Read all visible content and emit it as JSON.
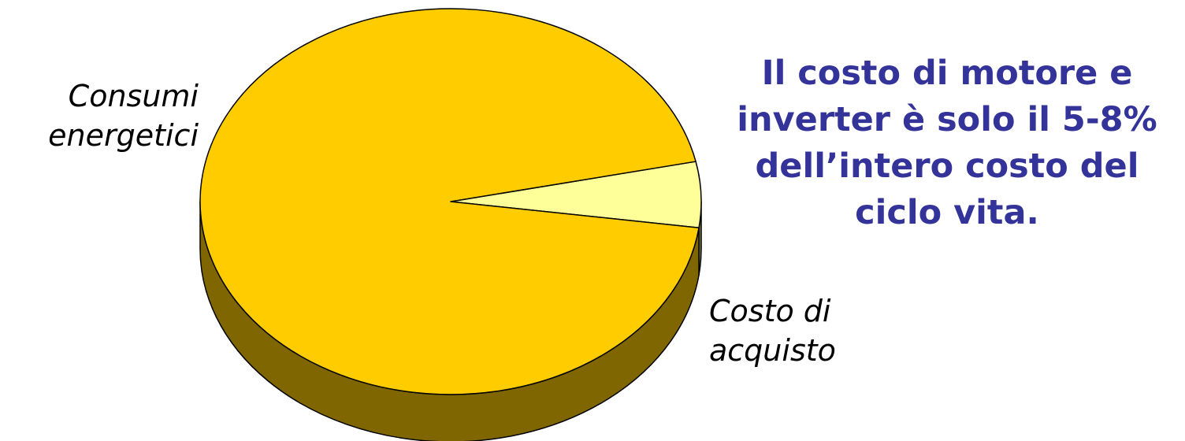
{
  "colors": {
    "slice_consumi_top": "#FFCC00",
    "slice_consumi_side": "#806600",
    "slice_acquisto_top": "#FFFF99",
    "slice_acquisto_side": "#808050",
    "outline": "#000000",
    "callout_text": "#333399"
  },
  "chart_data": {
    "type": "pie",
    "title": "",
    "three_d": true,
    "slices": [
      {
        "name": "Consumi energetici",
        "label_lines": [
          "Consumi",
          "energetici"
        ],
        "value": 94.5
      },
      {
        "name": "Costo di acquisto",
        "label_lines": [
          "Costo di",
          "acquisto"
        ],
        "value": 5.5
      }
    ]
  },
  "callout": {
    "lines": [
      "Il costo di motore e",
      "inverter è solo il 5-8%",
      "dell’intero costo del",
      "ciclo vita."
    ]
  }
}
